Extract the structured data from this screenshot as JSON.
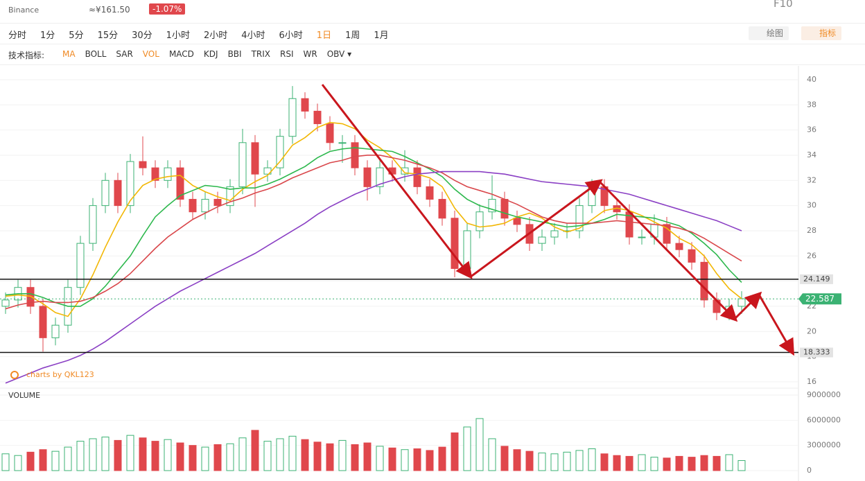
{
  "header": {
    "exchange": "Binance",
    "cny_price": "≈¥161.50",
    "change": "-1.07%",
    "f10": "F10"
  },
  "intervals": [
    "分时",
    "1分",
    "5分",
    "15分",
    "30分",
    "1小时",
    "2小时",
    "4小时",
    "6小时",
    "1日",
    "1周",
    "1月"
  ],
  "indicator_label": "技术指标:",
  "indicators": [
    "MA",
    "BOLL",
    "SAR",
    "VOL",
    "MACD",
    "KDJ",
    "BBI",
    "TRIX",
    "RSI",
    "WR",
    "OBV ▾"
  ],
  "tools": {
    "draw": "绘图",
    "indicators": "指标"
  },
  "chart_data": {
    "type": "candlestick",
    "watermark": "charts by QKL123",
    "volume_title": "VOLUME",
    "ylim": [
      15.5,
      41.1
    ],
    "yticks": [
      16,
      18,
      20,
      22,
      24,
      26,
      28,
      30,
      32,
      34,
      36,
      38,
      40
    ],
    "volume_ylim": [
      0,
      9000000
    ],
    "volume_yticks": [
      0,
      3000000,
      6000000,
      9000000
    ],
    "levels": [
      24.149,
      18.333
    ],
    "last_price": 22.587,
    "up_color": "#3bb273",
    "down_color": "#e0474c",
    "open": [
      22.0,
      22.5,
      23.5,
      22.0,
      19.5,
      20.5,
      23.5,
      27,
      30,
      32,
      30,
      33.5,
      33,
      32,
      33,
      30.5,
      29.5,
      30.5,
      30,
      31.5,
      35,
      32.5,
      33,
      35.5,
      38.5,
      37.5,
      36.5,
      35,
      35,
      33,
      31.5,
      33,
      32.5,
      33,
      31.5,
      30.5,
      29,
      25,
      28,
      29.5,
      30.5,
      29,
      28.5,
      27,
      27.5,
      28,
      28,
      30,
      31.5,
      30,
      29.5,
      27.5,
      27.5,
      28.5,
      27,
      26.5,
      25.5,
      22.5,
      21.5,
      22
    ],
    "high": [
      23.1,
      24.1,
      24.1,
      22.6,
      21.1,
      24.1,
      27.6,
      30.6,
      32.6,
      32.6,
      34.1,
      35.5,
      33.6,
      33.6,
      33.6,
      31.1,
      31.1,
      31.1,
      32.1,
      36.1,
      35.6,
      33.6,
      36.1,
      39.5,
      39.0,
      38.1,
      37.1,
      35.6,
      35.6,
      33.6,
      33.6,
      33.6,
      34.4,
      33.6,
      32.1,
      31.1,
      29.6,
      28.6,
      30.1,
      32.4,
      31.1,
      29.6,
      29.1,
      28.1,
      28.6,
      28.6,
      30.6,
      32.1,
      32.1,
      30.6,
      30.1,
      28.1,
      29.3,
      29.1,
      27.6,
      27.1,
      26.1,
      23.1,
      22.6,
      23.2
    ],
    "low": [
      21.4,
      21.9,
      21.4,
      18.4,
      18.9,
      19.9,
      22.9,
      26.4,
      29.4,
      29.4,
      29.4,
      32.4,
      31.4,
      31.4,
      29.9,
      28.9,
      28.9,
      29.4,
      29.4,
      30.9,
      29.9,
      31.9,
      32.4,
      34.9,
      36.9,
      35.9,
      34.4,
      33.4,
      32.4,
      30.4,
      30.9,
      31.9,
      31.9,
      30.9,
      29.9,
      28.4,
      24.3,
      24.4,
      27.4,
      28.9,
      28.4,
      27.9,
      26.4,
      26.4,
      26.9,
      27.4,
      27.4,
      29.4,
      29.4,
      28.9,
      26.9,
      26.9,
      26.9,
      26.4,
      25.9,
      24.9,
      21.9,
      20.9,
      20.9,
      21.4
    ],
    "close": [
      22.5,
      23.5,
      22.0,
      19.5,
      20.5,
      23.5,
      27,
      30,
      32,
      30,
      33.5,
      33,
      32,
      33,
      30.5,
      29.5,
      30.5,
      30,
      31.5,
      35,
      32.5,
      33,
      35.5,
      38.5,
      37.5,
      36.5,
      35,
      35,
      33,
      31.5,
      33,
      32.5,
      33,
      31.5,
      30.5,
      29,
      25,
      28,
      29.5,
      30.5,
      29,
      28.5,
      27,
      27.5,
      28,
      28,
      30,
      31.5,
      30,
      29.5,
      27.5,
      27.5,
      28.5,
      27,
      26.5,
      25.5,
      22.5,
      21.5,
      22,
      22.6
    ],
    "volume": [
      2000000,
      1800000,
      2200000,
      2500000,
      2300000,
      2800000,
      3500000,
      3800000,
      4000000,
      3600000,
      4200000,
      3900000,
      3500000,
      3700000,
      3300000,
      3000000,
      2800000,
      3100000,
      3200000,
      3900000,
      4800000,
      3500000,
      3800000,
      4100000,
      3700000,
      3400000,
      3200000,
      3600000,
      3100000,
      3300000,
      2900000,
      2700000,
      2500000,
      2600000,
      2400000,
      2800000,
      4500000,
      5200000,
      6200000,
      3800000,
      2900000,
      2500000,
      2300000,
      2100000,
      2000000,
      2200000,
      2400000,
      2600000,
      2000000,
      1800000,
      1700000,
      1900000,
      1600000,
      1500000,
      1700000,
      1600000,
      1800000,
      1700000,
      1900000,
      1200000
    ],
    "series": [
      {
        "color": "#f2b705",
        "values": [
          22.8,
          22.9,
          22.8,
          22.2,
          21.5,
          21.2,
          22.6,
          24.5,
          26.7,
          28.7,
          30.4,
          31.6,
          32.1,
          32.3,
          32.4,
          31.6,
          31.1,
          30.7,
          30.4,
          31.3,
          31.9,
          32.4,
          33.5,
          34.8,
          35.4,
          36.2,
          36.6,
          36.5,
          36.1,
          35.2,
          34.6,
          33.8,
          32.6,
          32.5,
          32.2,
          31.5,
          29.8,
          28.6,
          28.3,
          28.4,
          28.6,
          29.1,
          29.4,
          29.0,
          28.3,
          27.9,
          28.2,
          28.9,
          29.6,
          29.8,
          29.6,
          29.2,
          28.7,
          28.2,
          27.4,
          26.9,
          26.0,
          24.6,
          23.4,
          22.6
        ]
      },
      {
        "color": "#2db84d",
        "values": [
          22.9,
          23.0,
          23.0,
          22.7,
          22.3,
          22.0,
          22.0,
          22.6,
          23.6,
          24.8,
          26.0,
          27.6,
          29.1,
          30.0,
          30.8,
          31.2,
          31.6,
          31.5,
          31.3,
          31.4,
          31.4,
          31.7,
          32.1,
          32.6,
          33.1,
          33.8,
          34.3,
          34.5,
          34.6,
          34.5,
          34.4,
          34.3,
          33.9,
          33.4,
          32.9,
          32.3,
          31.3,
          30.5,
          30.0,
          29.7,
          29.4,
          29.1,
          28.9,
          28.7,
          28.5,
          28.3,
          28.4,
          28.6,
          28.9,
          29.3,
          29.2,
          29.1,
          29.0,
          28.7,
          28.4,
          27.8,
          27.0,
          26.1,
          24.9,
          23.9
        ]
      },
      {
        "color": "#d9474b",
        "values": [
          21.8,
          22.1,
          22.3,
          22.4,
          22.3,
          22.3,
          22.4,
          22.7,
          23.2,
          23.8,
          24.6,
          25.6,
          26.6,
          27.5,
          28.2,
          28.9,
          29.4,
          29.9,
          30.3,
          30.6,
          31.0,
          31.3,
          31.7,
          32.2,
          32.6,
          33.0,
          33.4,
          33.6,
          33.9,
          34.0,
          34.0,
          33.8,
          33.6,
          33.3,
          33.0,
          32.6,
          32.0,
          31.5,
          31.2,
          30.9,
          30.5,
          30.1,
          29.6,
          29.1,
          28.8,
          28.6,
          28.6,
          28.6,
          28.7,
          28.8,
          28.7,
          28.6,
          28.5,
          28.4,
          28.2,
          27.9,
          27.4,
          26.8,
          26.2,
          25.6
        ]
      },
      {
        "color": "#8a3fc4",
        "values": [
          15.9,
          16.3,
          16.7,
          17.1,
          17.4,
          17.7,
          18.1,
          18.6,
          19.2,
          19.9,
          20.6,
          21.3,
          22.0,
          22.6,
          23.2,
          23.7,
          24.2,
          24.7,
          25.2,
          25.7,
          26.2,
          26.8,
          27.4,
          28.0,
          28.6,
          29.3,
          29.9,
          30.4,
          30.9,
          31.3,
          31.7,
          32.0,
          32.3,
          32.5,
          32.6,
          32.7,
          32.7,
          32.7,
          32.7,
          32.6,
          32.5,
          32.3,
          32.1,
          31.9,
          31.8,
          31.7,
          31.6,
          31.5,
          31.3,
          31.1,
          30.9,
          30.6,
          30.3,
          30.0,
          29.7,
          29.4,
          29.1,
          28.8,
          28.4,
          28.0
        ]
      }
    ]
  }
}
